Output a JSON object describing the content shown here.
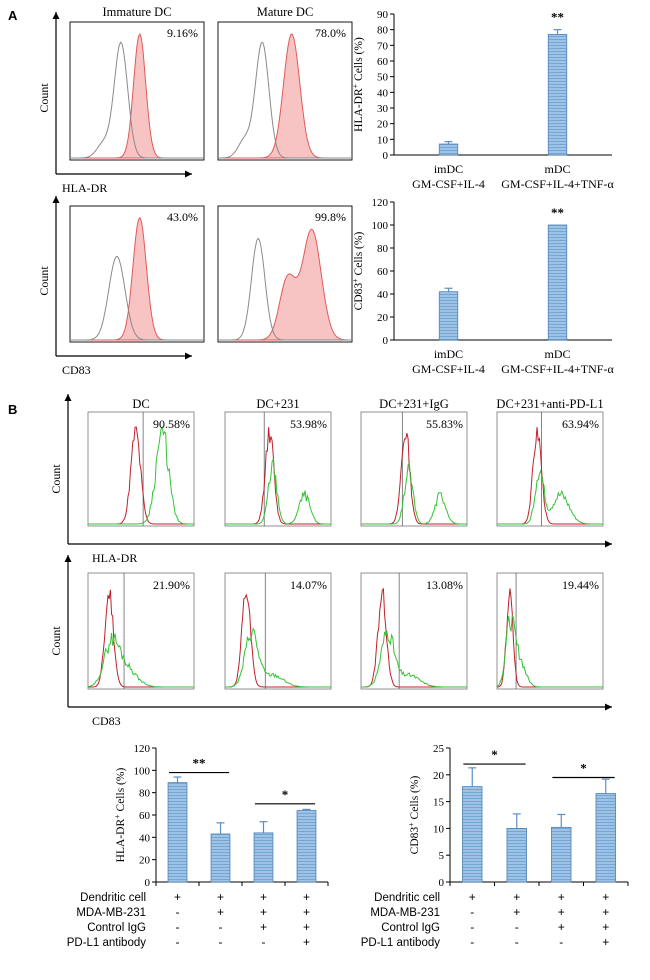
{
  "colors": {
    "bar_fill": "#9ec3e6",
    "bar_stripe": "#6a9fd0",
    "bar_edge": "#4f82b6",
    "error_bar": "#5b8fc4",
    "mature_fill": "#f7c3c3",
    "mature_line": "#e05a5a",
    "control_line": "#8a8a8a",
    "bflow_control": "#c0202c",
    "bflow_sample": "#35c235",
    "axis": "#000000"
  },
  "panel_a": {
    "label": "A",
    "flow_titles": [
      "Immature DC",
      "Mature DC"
    ],
    "count_label": "Count",
    "flow_rows": [
      {
        "marker": "HLA-DR",
        "percents": [
          "9.16%",
          "78.0%"
        ]
      },
      {
        "marker": "CD83",
        "percents": [
          "43.0%",
          "99.8%"
        ]
      }
    ]
  },
  "panel_b": {
    "label": "B",
    "flow_titles": [
      "DC",
      "DC+231",
      "DC+231+IgG",
      "DC+231+anti-PD-L1"
    ],
    "count_label": "Count",
    "flow_rows": [
      {
        "marker": "HLA-DR",
        "percents": [
          "90.58%",
          "53.98%",
          "55.83%",
          "63.94%"
        ]
      },
      {
        "marker": "CD83",
        "percents": [
          "21.90%",
          "14.07%",
          "13.08%",
          "19.44%"
        ]
      }
    ],
    "treatment_table": {
      "rows": [
        {
          "label": "Dendritic cell",
          "marks": [
            "+",
            "+",
            "+",
            "+"
          ]
        },
        {
          "label": "MDA-MB-231",
          "marks": [
            "-",
            "+",
            "+",
            "+"
          ]
        },
        {
          "label": "Control IgG",
          "marks": [
            "-",
            "-",
            "+",
            "+"
          ]
        },
        {
          "label": "PD-L1 antibody",
          "marks": [
            "-",
            "-",
            "-",
            "+"
          ]
        }
      ]
    }
  },
  "chart_data": [
    {
      "type": "bar",
      "panel": "A",
      "ylabel": "HLA-DR+ Cells (%)",
      "ylabel_main": "HLA-DR",
      "ylabel_sup": "+",
      "ylabel_tail": " Cells (%)",
      "ylim": [
        0,
        90
      ],
      "yticks": [
        "0",
        "10",
        "20",
        "30",
        "40",
        "50",
        "60",
        "70",
        "80",
        "90"
      ],
      "categories": [
        "imDC",
        "mDC"
      ],
      "category_sublabels": [
        "GM-CSF+IL-4",
        "GM-CSF+IL-4+TNF-α"
      ],
      "values": [
        7,
        77
      ],
      "errors": [
        1.5,
        3
      ],
      "significance": [
        "",
        "**"
      ]
    },
    {
      "type": "bar",
      "panel": "A",
      "ylabel": "CD83+ Cells (%)",
      "ylabel_main": "CD83",
      "ylabel_sup": "+",
      "ylabel_tail": " Cells (%)",
      "ylim": [
        0,
        120
      ],
      "yticks": [
        "0",
        "20",
        "40",
        "60",
        "80",
        "100",
        "120"
      ],
      "categories": [
        "imDC",
        "mDC"
      ],
      "category_sublabels": [
        "GM-CSF+IL-4",
        "GM-CSF+IL-4+TNF-α"
      ],
      "values": [
        42,
        100
      ],
      "errors": [
        3,
        0
      ],
      "significance": [
        "",
        "**"
      ]
    },
    {
      "type": "bar",
      "panel": "B",
      "ylabel": "HLA-DR+ Cells (%)",
      "ylabel_main": "HLA-DR",
      "ylabel_sup": "+",
      "ylabel_tail": " Cells (%)",
      "ylim": [
        0,
        120
      ],
      "yticks": [
        "0",
        "20",
        "40",
        "60",
        "80",
        "100",
        "120"
      ],
      "categories": [
        "",
        "",
        "",
        ""
      ],
      "values": [
        89,
        43,
        44,
        64
      ],
      "errors": [
        5,
        10,
        10,
        1
      ],
      "comparisons": [
        {
          "from": 0,
          "to": 1,
          "label": "**",
          "y": 98
        },
        {
          "from": 2,
          "to": 3,
          "label": "*",
          "y": 70
        }
      ]
    },
    {
      "type": "bar",
      "panel": "B",
      "ylabel": "CD83+ Cells (%)",
      "ylabel_main": "CD83",
      "ylabel_sup": "+",
      "ylabel_tail": " Cells (%)",
      "ylim": [
        0,
        25
      ],
      "yticks": [
        "0",
        "5",
        "10",
        "15",
        "20",
        "25"
      ],
      "categories": [
        "",
        "",
        "",
        ""
      ],
      "values": [
        17.8,
        10,
        10.2,
        16.5
      ],
      "errors": [
        3.5,
        2.7,
        2.4,
        2.7
      ],
      "comparisons": [
        {
          "from": 0,
          "to": 1,
          "label": "*",
          "y": 22
        },
        {
          "from": 2,
          "to": 3,
          "label": "*",
          "y": 19.5
        }
      ]
    }
  ]
}
